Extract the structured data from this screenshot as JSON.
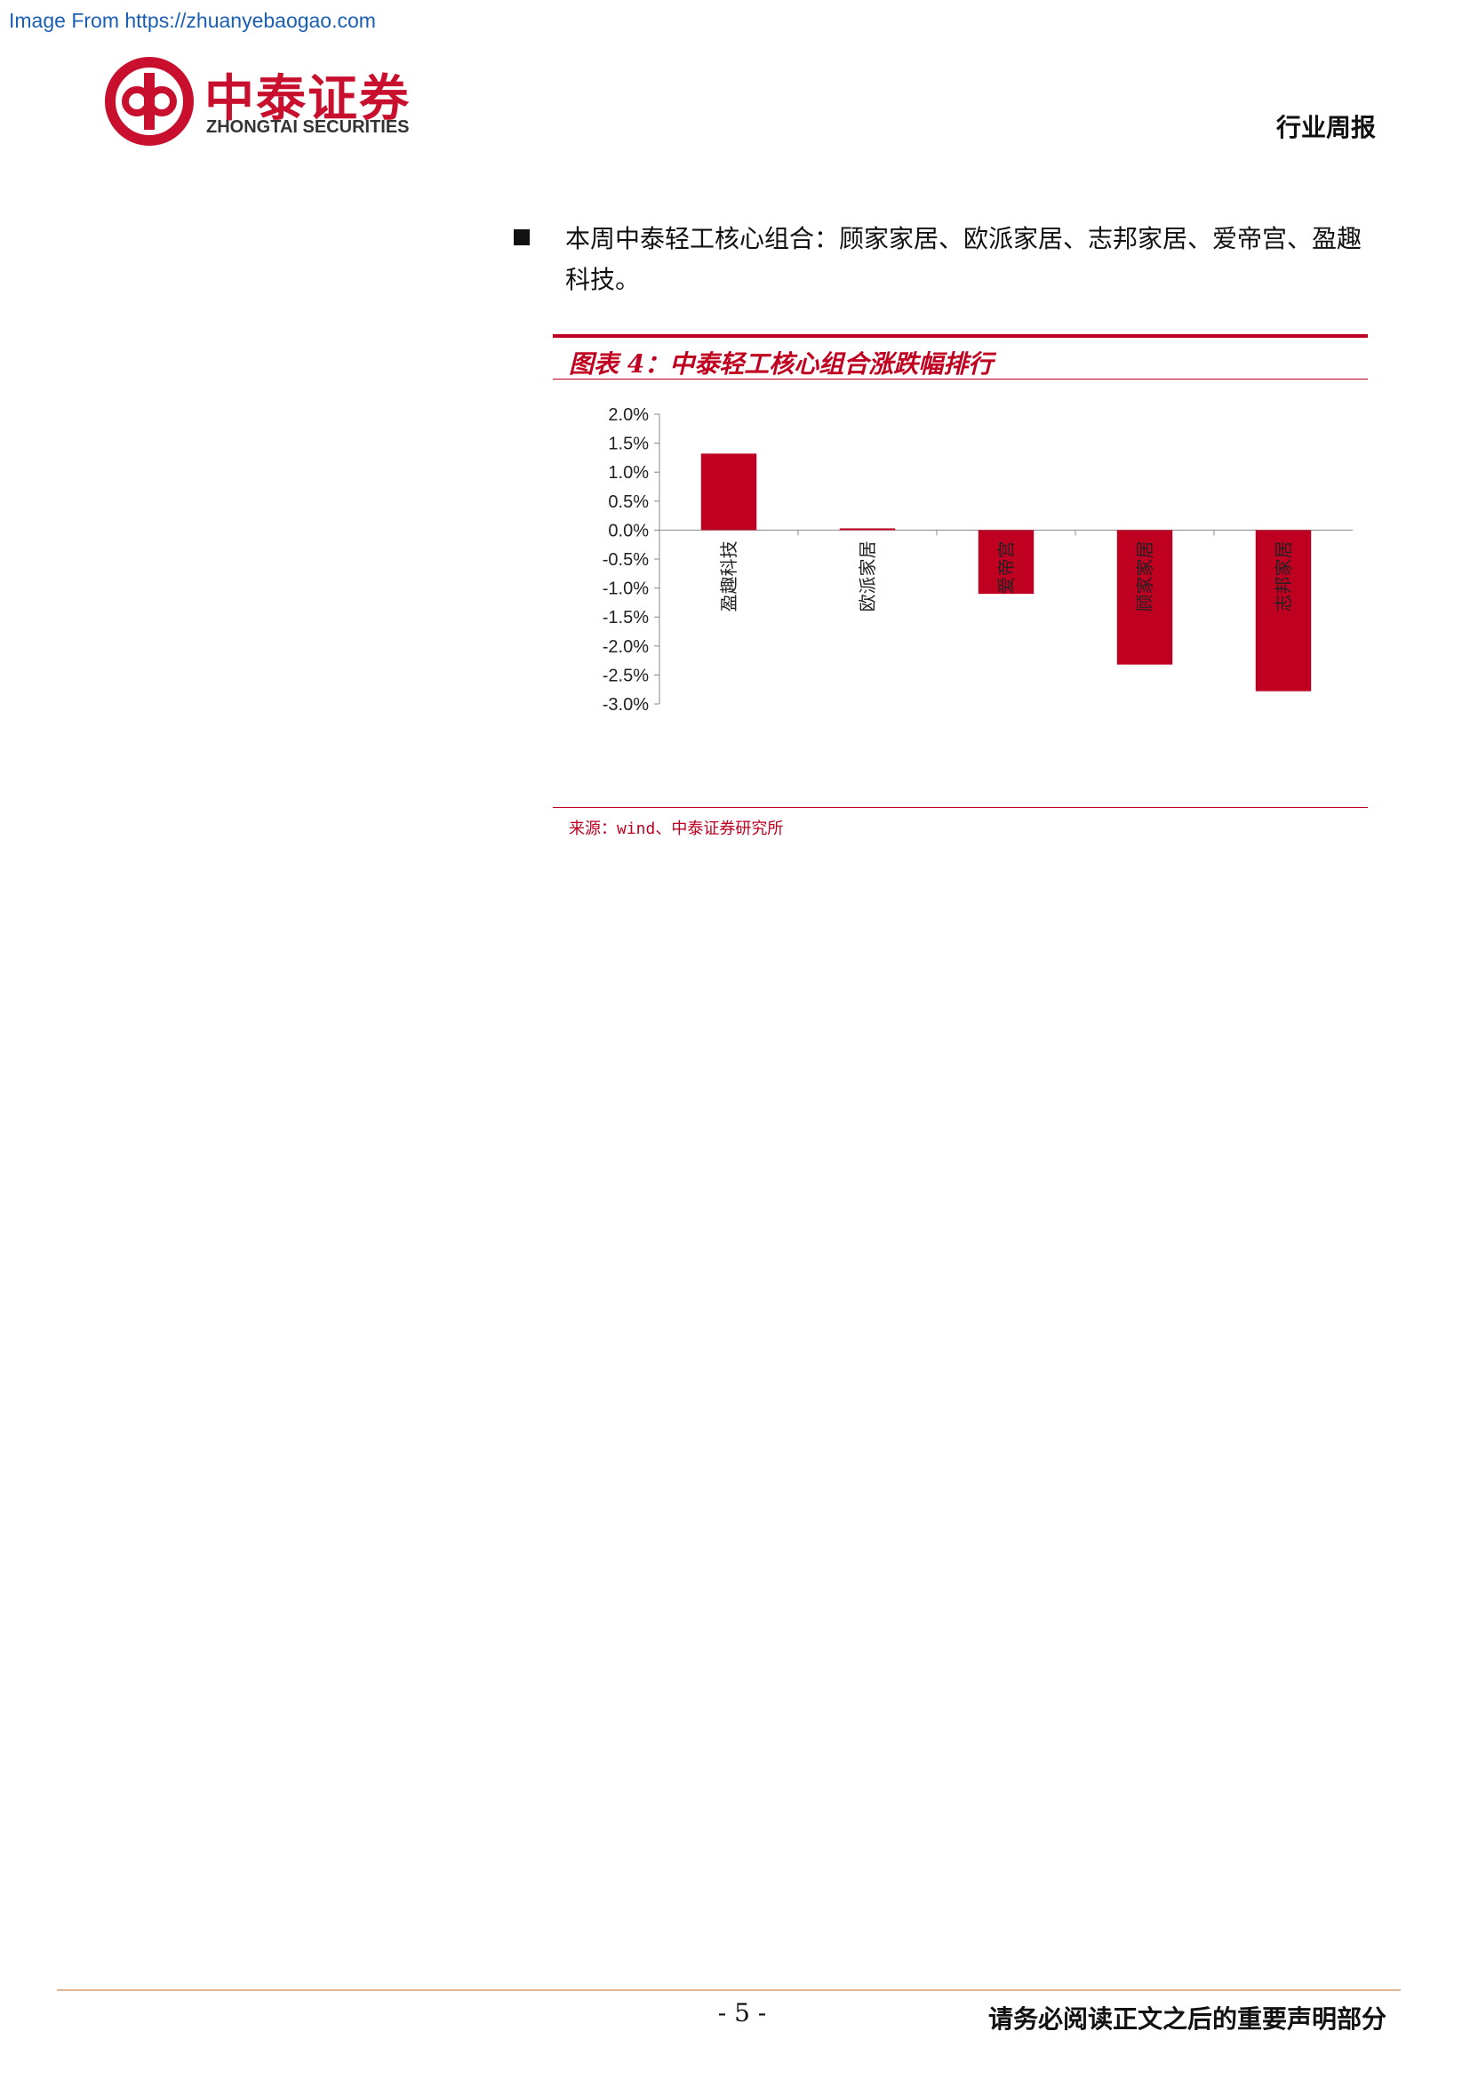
{
  "source_link": "Image From https://zhuanyebaogao.com",
  "header": {
    "logo_cn": "中泰证券",
    "logo_en": "ZHONGTAI SECURITIES",
    "report_type": "行业周报"
  },
  "body": {
    "bullet_text": "本周中泰轻工核心组合：顾家家居、欧派家居、志邦家居、爱帝宫、盈趣科技。"
  },
  "figure": {
    "title": "图表 4：中泰轻工核心组合涨跌幅排行",
    "source": "来源：wind、中泰证券研究所"
  },
  "chart_data": {
    "type": "bar",
    "title": "",
    "xlabel": "",
    "ylabel": "",
    "categories": [
      "盈趣科技",
      "欧派家居",
      "爱帝宫",
      "顾家家居",
      "志邦家居"
    ],
    "values": [
      1.32,
      0.03,
      -1.1,
      -2.32,
      -2.78
    ],
    "value_unit": "%",
    "ylim": [
      -3.0,
      2.0
    ],
    "yticks": [
      "2.0%",
      "1.5%",
      "1.0%",
      "0.5%",
      "0.0%",
      "-0.5%",
      "-1.0%",
      "-1.5%",
      "-2.0%",
      "-2.5%",
      "-3.0%"
    ],
    "bar_color": "#c00020",
    "grid": false,
    "legend": "none"
  },
  "footer": {
    "page_number": "- 5 -",
    "disclaimer": "请务必阅读正文之后的重要声明部分"
  }
}
